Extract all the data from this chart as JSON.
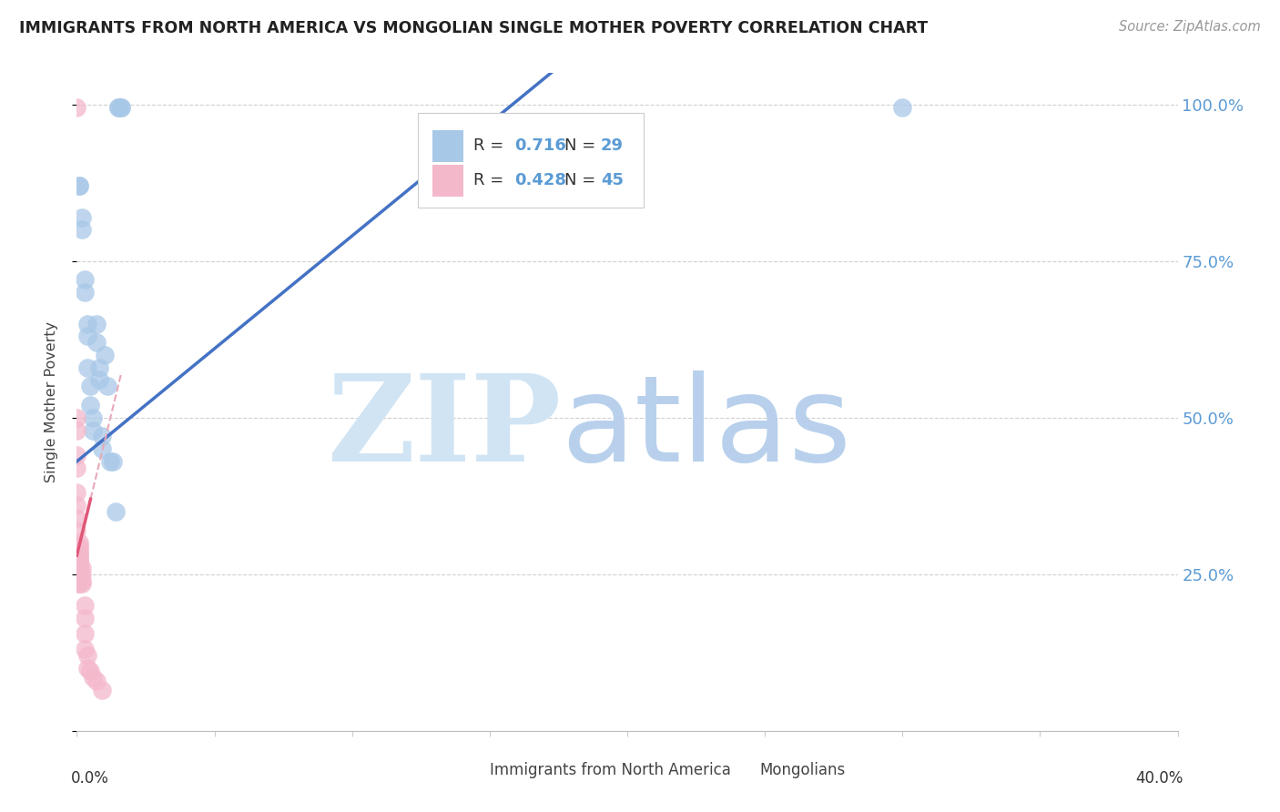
{
  "title": "IMMIGRANTS FROM NORTH AMERICA VS MONGOLIAN SINGLE MOTHER POVERTY CORRELATION CHART",
  "source": "Source: ZipAtlas.com",
  "ylabel": "Single Mother Poverty",
  "xlim": [
    0.0,
    0.4
  ],
  "ylim": [
    0.0,
    1.05
  ],
  "blue_R": "0.716",
  "blue_N": "29",
  "pink_R": "0.428",
  "pink_N": "45",
  "blue_color": "#a8c8e8",
  "pink_color": "#f4b8cb",
  "blue_line_color": "#4472c4",
  "pink_line_color": "#e05878",
  "pink_dash_color": "#e8a8b8",
  "watermark_zip_color": "#d0e4f4",
  "watermark_atlas_color": "#b8d0ec",
  "ytick_color": "#5b9bd5",
  "grid_color": "#d0d0d0",
  "blue_points": [
    [
      0.001,
      0.87
    ],
    [
      0.001,
      0.87
    ],
    [
      0.002,
      0.8
    ],
    [
      0.002,
      0.82
    ],
    [
      0.003,
      0.72
    ],
    [
      0.003,
      0.7
    ],
    [
      0.004,
      0.65
    ],
    [
      0.004,
      0.63
    ],
    [
      0.004,
      0.58
    ],
    [
      0.005,
      0.55
    ],
    [
      0.005,
      0.52
    ],
    [
      0.006,
      0.5
    ],
    [
      0.006,
      0.48
    ],
    [
      0.007,
      0.65
    ],
    [
      0.007,
      0.62
    ],
    [
      0.008,
      0.58
    ],
    [
      0.008,
      0.56
    ],
    [
      0.009,
      0.47
    ],
    [
      0.009,
      0.45
    ],
    [
      0.01,
      0.6
    ],
    [
      0.011,
      0.55
    ],
    [
      0.012,
      0.43
    ],
    [
      0.013,
      0.43
    ],
    [
      0.014,
      0.35
    ],
    [
      0.015,
      0.995
    ],
    [
      0.015,
      0.995
    ],
    [
      0.016,
      0.995
    ],
    [
      0.016,
      0.995
    ],
    [
      0.3,
      0.995
    ]
  ],
  "pink_points": [
    [
      0.0,
      0.995
    ],
    [
      0.0,
      0.5
    ],
    [
      0.0,
      0.48
    ],
    [
      0.0,
      0.44
    ],
    [
      0.0,
      0.42
    ],
    [
      0.0,
      0.38
    ],
    [
      0.0,
      0.36
    ],
    [
      0.0,
      0.34
    ],
    [
      0.0,
      0.32
    ],
    [
      0.001,
      0.3
    ],
    [
      0.001,
      0.295
    ],
    [
      0.001,
      0.29
    ],
    [
      0.001,
      0.285
    ],
    [
      0.001,
      0.28
    ],
    [
      0.001,
      0.28
    ],
    [
      0.001,
      0.275
    ],
    [
      0.001,
      0.27
    ],
    [
      0.001,
      0.27
    ],
    [
      0.001,
      0.265
    ],
    [
      0.001,
      0.26
    ],
    [
      0.001,
      0.26
    ],
    [
      0.001,
      0.255
    ],
    [
      0.001,
      0.255
    ],
    [
      0.001,
      0.25
    ],
    [
      0.001,
      0.25
    ],
    [
      0.001,
      0.245
    ],
    [
      0.001,
      0.245
    ],
    [
      0.001,
      0.24
    ],
    [
      0.001,
      0.24
    ],
    [
      0.001,
      0.235
    ],
    [
      0.001,
      0.235
    ],
    [
      0.002,
      0.26
    ],
    [
      0.002,
      0.25
    ],
    [
      0.002,
      0.24
    ],
    [
      0.002,
      0.235
    ],
    [
      0.003,
      0.2
    ],
    [
      0.003,
      0.18
    ],
    [
      0.003,
      0.155
    ],
    [
      0.003,
      0.13
    ],
    [
      0.004,
      0.12
    ],
    [
      0.004,
      0.1
    ],
    [
      0.005,
      0.095
    ],
    [
      0.006,
      0.085
    ],
    [
      0.007,
      0.08
    ],
    [
      0.009,
      0.065
    ]
  ]
}
